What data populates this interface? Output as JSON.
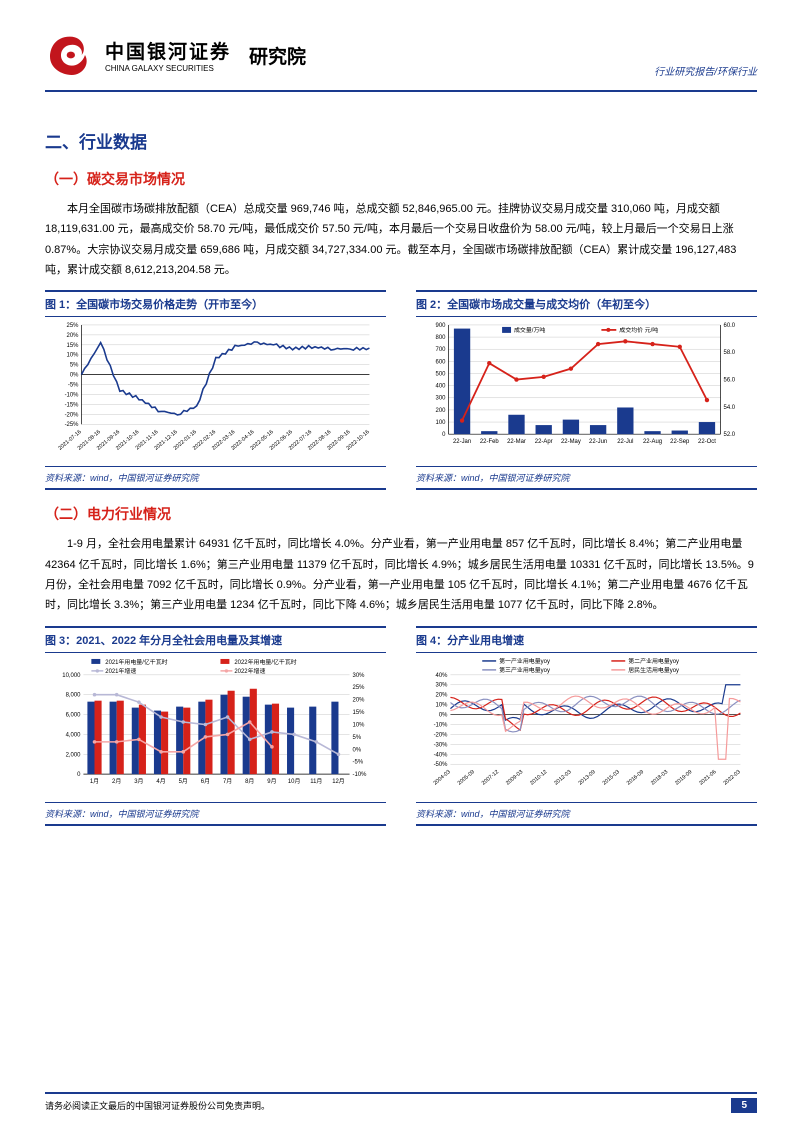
{
  "header": {
    "org_cn": "中国银河证券",
    "org_en": "CHINA GALAXY SECURITIES",
    "institute": "研究院",
    "doc_type": "行业研究报告/环保行业"
  },
  "section": {
    "title": "二、行业数据"
  },
  "sub1": {
    "title": "（一）碳交易市场情况",
    "para": "本月全国碳市场碳排放配额（CEA）总成交量 969,746 吨，总成交额 52,846,965.00 元。挂牌协议交易月成交量 310,060 吨，月成交额 18,119,631.00 元，最高成交价 58.70 元/吨，最低成交价 57.50 元/吨，本月最后一个交易日收盘价为 58.00 元/吨，较上月最后一个交易日上涨 0.87%。大宗协议交易月成交量 659,686 吨，月成交额 34,727,334.00 元。截至本月，全国碳市场碳排放配额（CEA）累计成交量 196,127,483 吨，累计成交额 8,612,213,204.58 元。"
  },
  "chart1": {
    "title": "图 1：全国碳市场交易价格走势（开市至今）",
    "source": "资料来源：wind，中国银河证券研究院",
    "type": "line",
    "ylim": [
      -25,
      25
    ],
    "ytick_step": 5,
    "ylabels": [
      "-25%",
      "-20%",
      "-15%",
      "-10%",
      "-5%",
      "0%",
      "5%",
      "10%",
      "15%",
      "20%",
      "25%"
    ],
    "xlabels": [
      "2021-07-16",
      "2021-08-16",
      "2021-09-16",
      "2021-10-16",
      "2021-11-16",
      "2021-12-16",
      "2022-01-16",
      "2022-02-16",
      "2022-03-16",
      "2022-04-16",
      "2022-05-16",
      "2022-06-16",
      "2022-07-16",
      "2022-08-16",
      "2022-09-16",
      "2022-10-16"
    ],
    "line_color": "#1a3a8e",
    "grid_color": "#c9c9c9",
    "data": [
      0,
      16,
      -8,
      -12,
      -18,
      -20,
      -16,
      8,
      14,
      16,
      15,
      13,
      14,
      13,
      13,
      13
    ]
  },
  "chart2": {
    "title": "图 2：全国碳市场成交量与成交均价（年初至今）",
    "source": "资料来源：wind，中国银河证券研究院",
    "type": "bar+line",
    "y1lim": [
      0,
      900
    ],
    "y1tick_step": 100,
    "y1labels": [
      "0",
      "100",
      "200",
      "300",
      "400",
      "500",
      "600",
      "700",
      "800",
      "900"
    ],
    "y2lim": [
      52,
      60
    ],
    "y2tick_step": 2,
    "y2labels": [
      "52.0",
      "54.0",
      "56.0",
      "58.0",
      "60.0"
    ],
    "xlabels": [
      "22-Jan",
      "22-Feb",
      "22-Mar",
      "22-Apr",
      "22-May",
      "22-Jun",
      "22-Jul",
      "22-Aug",
      "22-Sep",
      "22-Oct"
    ],
    "legend": [
      "成交量/万吨",
      "成交均价 元/吨"
    ],
    "bar_color": "#1a3a8e",
    "line_color": "#d6221a",
    "grid_color": "#c9c9c9",
    "bars": [
      870,
      25,
      160,
      75,
      120,
      75,
      220,
      25,
      30,
      100
    ],
    "line": [
      53,
      57.2,
      56,
      56.2,
      56.8,
      58.6,
      58.8,
      58.6,
      58.4,
      54.5
    ]
  },
  "sub2": {
    "title": "（二）电力行业情况",
    "para": "1-9 月，全社会用电量累计 64931 亿千瓦时，同比增长 4.0%。分产业看，第一产业用电量 857 亿千瓦时，同比增长 8.4%；第二产业用电量 42364 亿千瓦时，同比增长 1.6%；第三产业用电量 11379 亿千瓦时，同比增长 4.9%；城乡居民生活用电量 10331 亿千瓦时，同比增长 13.5%。9 月份，全社会用电量 7092 亿千瓦时，同比增长 0.9%。分产业看，第一产业用电量 105 亿千瓦时，同比增长 4.1%；第二产业用电量 4676 亿千瓦时，同比增长 3.3%；第三产业用电量 1234 亿千瓦时，同比下降 4.6%；城乡居民生活用电量 1077 亿千瓦时，同比下降 2.8%。"
  },
  "chart3": {
    "title": "图 3：2021、2022 年分月全社会用电量及其增速",
    "source": "资料来源：wind，中国银河证券研究院",
    "type": "bar+line",
    "y1lim": [
      0,
      10000
    ],
    "y1tick_step": 2000,
    "y1labels": [
      "0",
      "2,000",
      "4,000",
      "6,000",
      "8,000",
      "10,000"
    ],
    "y2lim": [
      -10,
      30
    ],
    "y2tick_step": 5,
    "y2labels": [
      "-10%",
      "-5%",
      "0%",
      "5%",
      "10%",
      "15%",
      "20%",
      "25%",
      "30%"
    ],
    "xlabels": [
      "1月",
      "2月",
      "3月",
      "4月",
      "5月",
      "6月",
      "7月",
      "8月",
      "9月",
      "10月",
      "11月",
      "12月"
    ],
    "legend": [
      "2021年用电量/亿千瓦时",
      "2022年用电量/亿千瓦时",
      "2021年增速",
      "2022年增速"
    ],
    "colors": {
      "bar2021": "#1a3a8e",
      "bar2022": "#d6221a",
      "line2021": "#b8b8d6",
      "line2022": "#f5a6a6"
    },
    "grid_color": "#c9c9c9",
    "bars2021": [
      7300,
      7300,
      6700,
      6400,
      6800,
      7300,
      8000,
      7800,
      7000,
      6700,
      6800,
      7300
    ],
    "bars2022": [
      7400,
      7400,
      7000,
      6300,
      6700,
      7500,
      8400,
      8600,
      7100,
      0,
      0,
      0
    ],
    "line2021": [
      22,
      22,
      19,
      13,
      11,
      10,
      13,
      4,
      7,
      6,
      3,
      -2
    ],
    "line2022": [
      3,
      3,
      4,
      -1,
      -1,
      5,
      6,
      11,
      1,
      null,
      null,
      null
    ]
  },
  "chart4": {
    "title": "图 4：分产业用电增速",
    "source": "资料来源：wind，中国银河证券研究院",
    "type": "multi-line",
    "ylim": [
      -50,
      40
    ],
    "ytick_step": 10,
    "ylabels": [
      "-50%",
      "-40%",
      "-30%",
      "-20%",
      "-10%",
      "0%",
      "10%",
      "20%",
      "30%",
      "40%"
    ],
    "xlabels": [
      "2004-03",
      "2005-09",
      "2007-12",
      "2009-03",
      "2010-12",
      "2012-03",
      "2013-09",
      "2015-03",
      "2016-09",
      "2018-03",
      "2019-09",
      "2021-06",
      "2022-03"
    ],
    "legend": [
      "第一产业用电量yoy",
      "第二产业用电量yoy",
      "第三产业用电量yoy",
      "居民生活用电量yoy"
    ],
    "colors": {
      "l1": "#1a3a8e",
      "l2": "#d6221a",
      "l3": "#8a90c0",
      "l4": "#f59a9a"
    },
    "grid_color": "#c9c9c9"
  },
  "footer": {
    "disclaimer": "请务必阅读正文最后的中国银河证券股份公司免责声明。",
    "page": "5"
  }
}
